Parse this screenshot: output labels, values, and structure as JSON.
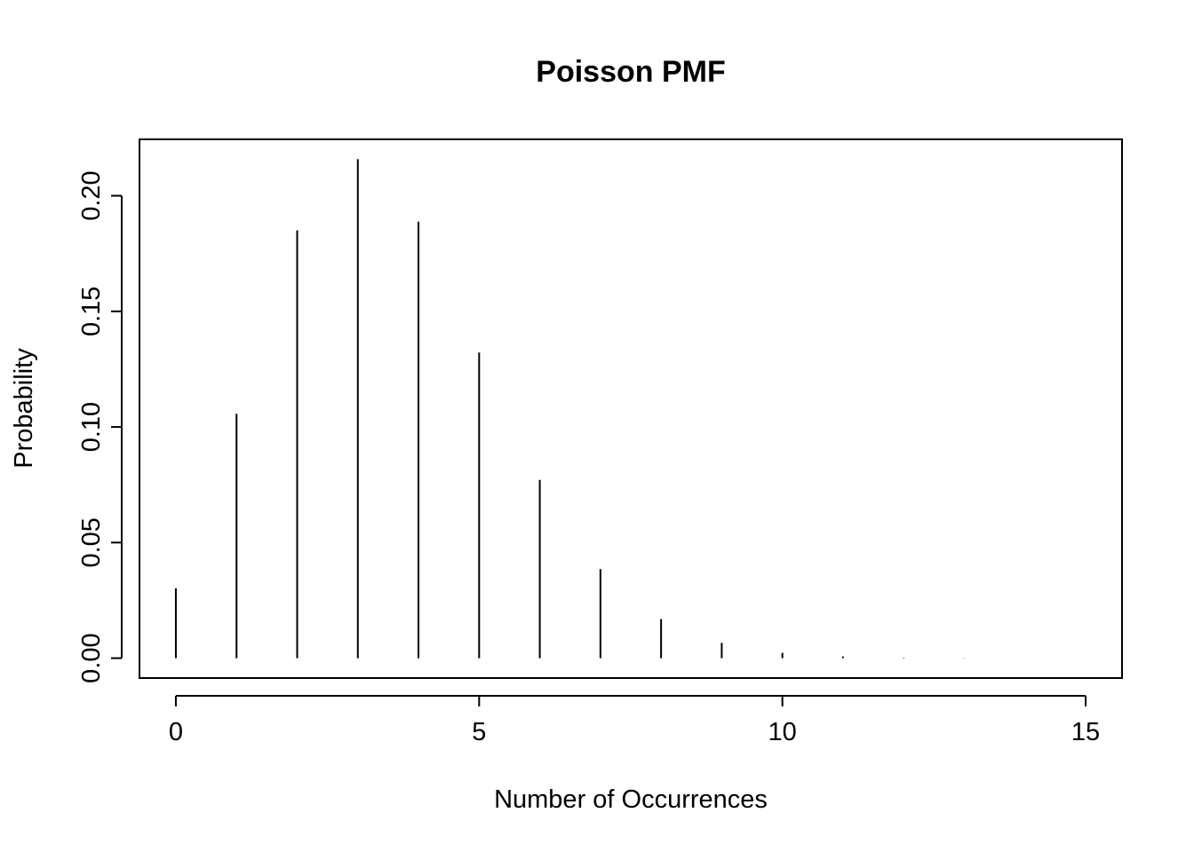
{
  "chart_data": {
    "type": "bar",
    "style": "vertical lines (histogram-like spikes)",
    "title": "Poisson PMF",
    "xlabel": "Number of Occurrences",
    "ylabel": "Probability",
    "x": [
      0,
      1,
      2,
      3,
      4,
      5,
      6,
      7,
      8,
      9,
      10,
      11,
      12,
      13,
      14,
      15
    ],
    "values": [
      0.0302,
      0.1057,
      0.185,
      0.2158,
      0.1888,
      0.1322,
      0.0771,
      0.0385,
      0.0169,
      0.0066,
      0.0023,
      0.0007,
      0.0002,
      0.0001,
      0.0,
      0.0
    ],
    "xlim": [
      -0.6,
      15.6
    ],
    "ylim": [
      -0.0086,
      0.2244
    ],
    "xticks": [
      0,
      5,
      10,
      15
    ],
    "xtick_labels": [
      "0",
      "5",
      "10",
      "15"
    ],
    "yticks": [
      0.0,
      0.05,
      0.1,
      0.15,
      0.2
    ],
    "ytick_labels": [
      "0.00",
      "0.05",
      "0.10",
      "0.15",
      "0.20"
    ],
    "grid": false,
    "line_color": "#000000"
  }
}
